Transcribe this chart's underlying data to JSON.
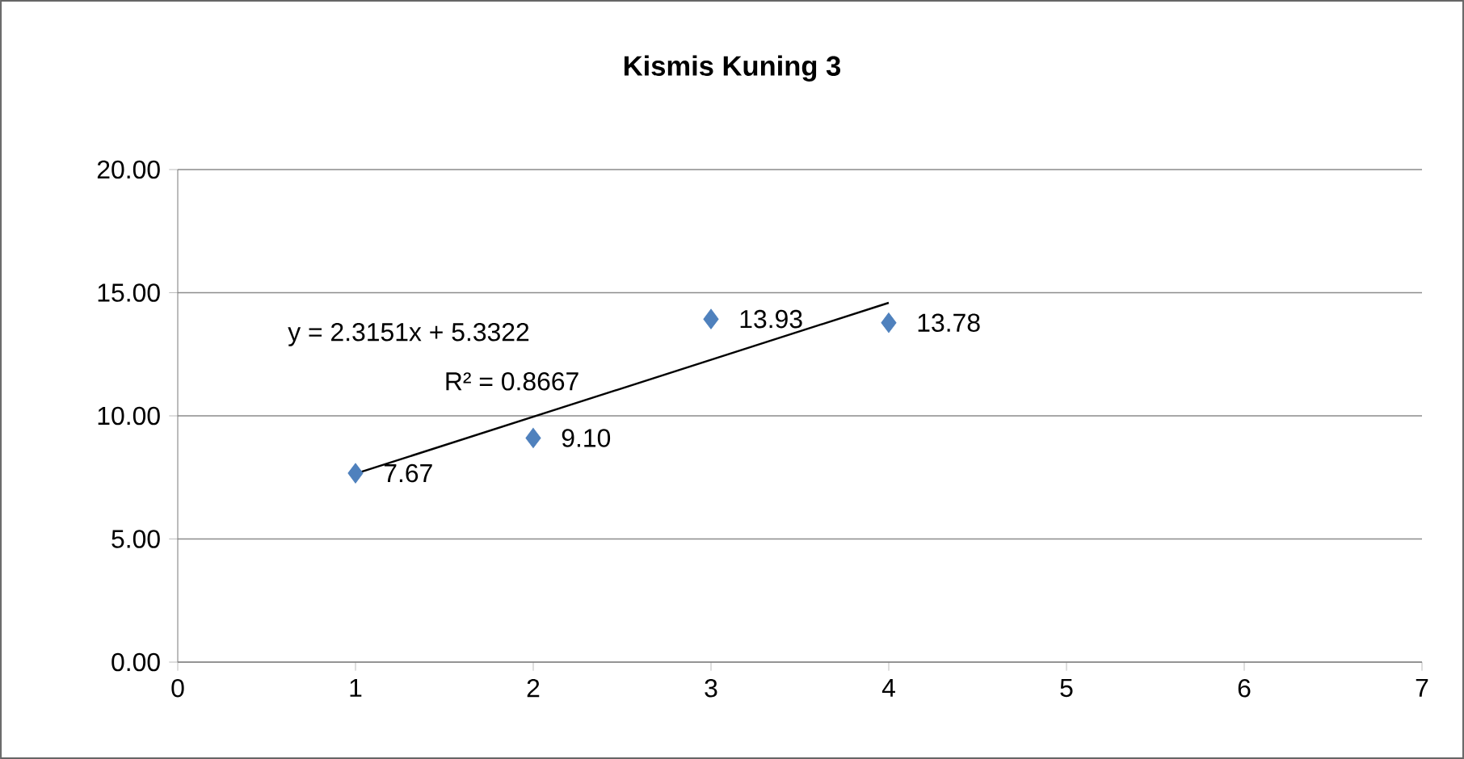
{
  "chart_data": {
    "type": "scatter",
    "title": "Kismis Kuning 3",
    "series": [
      {
        "marker": "diamond",
        "color": "#4f81bd",
        "x": [
          1,
          2,
          3,
          4
        ],
        "values": [
          7.67,
          9.1,
          13.93,
          13.78
        ],
        "value_labels": [
          "7.67",
          "9.10",
          "13.93",
          "13.78"
        ]
      },
      {
        "type": "line",
        "marker": "none",
        "color": "#000000",
        "x": [
          1,
          4
        ],
        "values": [
          7.65,
          14.59
        ]
      }
    ],
    "annotations": [
      "y = 2.3151x + 5.3322",
      "R² = 0.8667"
    ],
    "xlim": [
      0,
      7
    ],
    "xticks": [
      0,
      1,
      2,
      3,
      4,
      5,
      6,
      7
    ],
    "ylim": [
      0,
      20
    ],
    "yticks": [
      {
        "value": 0,
        "label": "0.00"
      },
      {
        "value": 5,
        "label": "5.00"
      },
      {
        "value": 10,
        "label": "10.00"
      },
      {
        "value": 15,
        "label": "15.00"
      },
      {
        "value": 20,
        "label": "20.00"
      }
    ],
    "grid": "y"
  }
}
